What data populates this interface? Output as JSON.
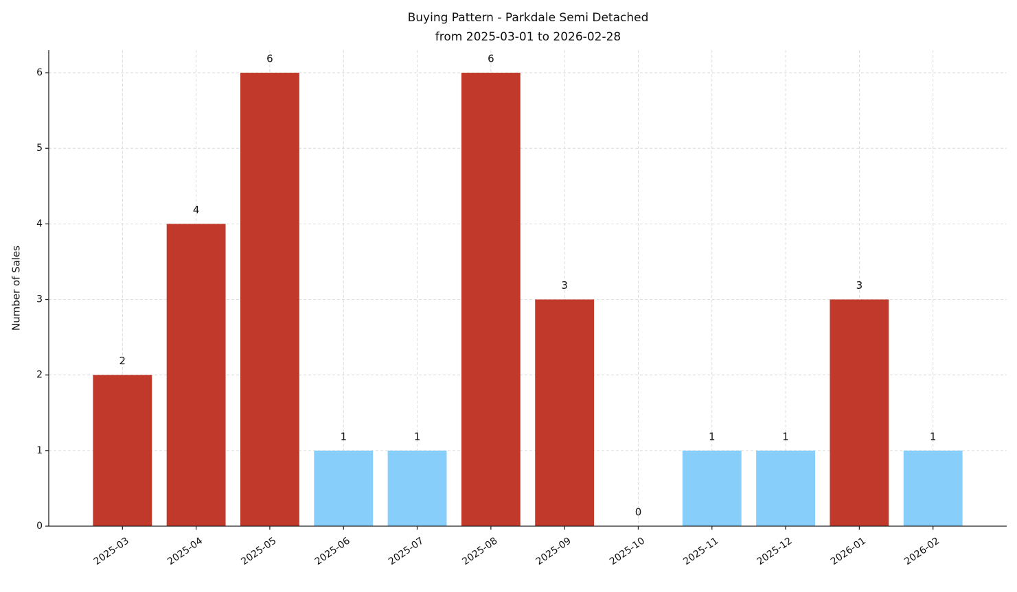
{
  "chart_data": {
    "type": "bar",
    "title": "Buying Pattern - Parkdale Semi Detached",
    "subtitle": "from 2025-03-01 to 2026-02-28",
    "y_label": "Number of Sales",
    "categories": [
      "2025-03",
      "2025-04",
      "2025-05",
      "2025-06",
      "2025-07",
      "2025-08",
      "2025-09",
      "2025-10",
      "2025-11",
      "2025-12",
      "2026-01",
      "2026-02"
    ],
    "values": [
      2,
      4,
      6,
      1,
      1,
      6,
      3,
      0,
      1,
      1,
      3,
      1
    ],
    "colors": [
      "#c0392b",
      "#c0392b",
      "#c0392b",
      "#87cefa",
      "#87cefa",
      "#c0392b",
      "#c0392b",
      "#87cefa",
      "#87cefa",
      "#87cefa",
      "#c0392b",
      "#87cefa"
    ],
    "ylim": [
      0,
      6.3
    ],
    "yticks": [
      0,
      1,
      2,
      3,
      4,
      5,
      6
    ],
    "grid": true
  }
}
